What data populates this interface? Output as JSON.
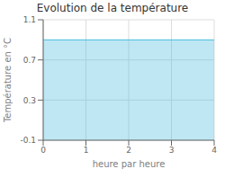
{
  "chart_data": {
    "type": "area",
    "title": "Evolution de la température",
    "xlabel": "heure par heure",
    "ylabel": "Température en °C",
    "x": [
      0,
      4
    ],
    "values": [
      0.9,
      0.9
    ],
    "color": "#44bbdd",
    "xlim": [
      0,
      4
    ],
    "ylim": [
      -0.1,
      1.1
    ],
    "xticks": [
      0,
      1,
      2,
      3,
      4
    ],
    "yticks": [
      -0.1,
      0.3,
      0.7,
      1.1
    ],
    "grid": true
  }
}
